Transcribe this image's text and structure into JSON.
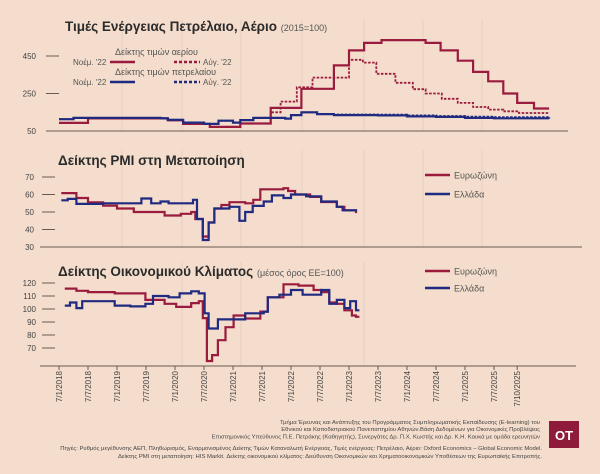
{
  "colors": {
    "background": "#f4ddcc",
    "eurozone": "#9b1b3e",
    "greece": "#1f2a80",
    "gas": "#9b1b3e",
    "oil": "#1f2a80",
    "logo": "#8e1b3a"
  },
  "chart_data": [
    {
      "type": "line",
      "title": "Τιμές Ενέργειας Πετρέλαιο, Αέριο",
      "subtitle": "(2015=100)",
      "yticks": [
        450,
        250,
        50
      ],
      "ylim": [
        50,
        560
      ],
      "legend": {
        "gas_title": "Δείκτης τιμών αερίου",
        "oil_title": "Δείκτης τιμών πετρελαίου",
        "solid_label": "Νοέμ. '22",
        "dotted_label": "Αύγ. '22"
      },
      "series": [
        {
          "name": "gas_nov22",
          "style": "solid",
          "color": "#9b1b3e",
          "points": [
            [
              2018.0,
              93
            ],
            [
              2018.5,
              117
            ],
            [
              2019.875,
              107
            ],
            [
              2020.14,
              88
            ],
            [
              2020.6,
              72
            ],
            [
              2021.125,
              90
            ],
            [
              2021.65,
              173
            ],
            [
              2022.18,
              275
            ],
            [
              2022.74,
              400
            ],
            [
              2023.0,
              480
            ],
            [
              2023.26,
              520
            ],
            [
              2023.56,
              535
            ],
            [
              2024.32,
              520
            ],
            [
              2024.58,
              480
            ],
            [
              2024.875,
              425
            ],
            [
              2025.14,
              365
            ],
            [
              2025.4,
              315
            ],
            [
              2025.66,
              250
            ],
            [
              2025.9,
              200
            ],
            [
              2026.19,
              170
            ],
            [
              2026.45,
              170
            ]
          ]
        },
        {
          "name": "gas_aug22",
          "style": "dotted",
          "color": "#9b1b3e",
          "points": [
            [
              2018.0,
              93
            ],
            [
              2018.5,
              117
            ],
            [
              2019.875,
              107
            ],
            [
              2020.14,
              88
            ],
            [
              2020.6,
              72
            ],
            [
              2021.125,
              90
            ],
            [
              2021.65,
              150
            ],
            [
              2021.82,
              207
            ],
            [
              2022.1,
              283
            ],
            [
              2022.37,
              335
            ],
            [
              2022.74,
              335
            ],
            [
              2023.0,
              430
            ],
            [
              2023.24,
              415
            ],
            [
              2023.47,
              355
            ],
            [
              2023.8,
              307
            ],
            [
              2024.1,
              273
            ],
            [
              2024.32,
              250
            ],
            [
              2024.6,
              222
            ],
            [
              2024.875,
              200
            ],
            [
              2025.14,
              178
            ],
            [
              2025.4,
              164
            ],
            [
              2025.66,
              155
            ],
            [
              2025.93,
              146
            ],
            [
              2026.45,
              146
            ]
          ]
        },
        {
          "name": "oil_nov22",
          "style": "solid",
          "color": "#1f2a80",
          "points": [
            [
              2018.0,
              113
            ],
            [
              2018.25,
              120
            ],
            [
              2019.75,
              118
            ],
            [
              2019.875,
              110
            ],
            [
              2020.14,
              95
            ],
            [
              2020.5,
              88
            ],
            [
              2020.75,
              105
            ],
            [
              2021.0,
              95
            ],
            [
              2021.125,
              108
            ],
            [
              2021.35,
              120
            ],
            [
              2021.9,
              116
            ],
            [
              2022.0,
              135
            ],
            [
              2022.18,
              150
            ],
            [
              2022.45,
              140
            ],
            [
              2022.74,
              135
            ],
            [
              2023.5,
              133
            ],
            [
              2024.0,
              128
            ],
            [
              2024.5,
              125
            ],
            [
              2025.0,
              120
            ],
            [
              2025.5,
              118
            ],
            [
              2026.45,
              116
            ]
          ]
        },
        {
          "name": "oil_aug22",
          "style": "dotted",
          "color": "#1f2a80",
          "points": [
            [
              2018.0,
              113
            ],
            [
              2018.25,
              120
            ],
            [
              2019.75,
              118
            ],
            [
              2019.875,
              110
            ],
            [
              2020.14,
              95
            ],
            [
              2020.5,
              88
            ],
            [
              2020.75,
              105
            ],
            [
              2021.0,
              95
            ],
            [
              2021.125,
              108
            ],
            [
              2021.35,
              120
            ],
            [
              2021.9,
              116
            ],
            [
              2022.0,
              135
            ],
            [
              2022.18,
              150
            ],
            [
              2022.45,
              140
            ],
            [
              2022.74,
              138
            ],
            [
              2023.5,
              137
            ],
            [
              2024.0,
              133
            ],
            [
              2024.5,
              130
            ],
            [
              2025.0,
              127
            ],
            [
              2025.5,
              124
            ],
            [
              2026.45,
              122
            ]
          ]
        }
      ]
    },
    {
      "type": "line",
      "title": "Δείκτης PMI στη Μεταποίηση",
      "yticks": [
        70,
        60,
        50,
        40,
        30
      ],
      "ylim": [
        30,
        72
      ],
      "legend": [
        "Ευρωζώνη",
        "Ελλάδα"
      ],
      "series": [
        {
          "name": "Ευρωζώνη",
          "color": "#9b1b3e",
          "points": [
            [
              2018.04,
              60.8
            ],
            [
              2018.3,
              58
            ],
            [
              2018.5,
              55.5
            ],
            [
              2018.76,
              53.6
            ],
            [
              2019.0,
              52
            ],
            [
              2019.29,
              50
            ],
            [
              2019.82,
              48
            ],
            [
              2020.1,
              49
            ],
            [
              2020.28,
              50
            ],
            [
              2020.35,
              46
            ],
            [
              2020.48,
              36
            ],
            [
              2020.58,
              44
            ],
            [
              2020.68,
              52
            ],
            [
              2020.8,
              54
            ],
            [
              2020.94,
              55.6
            ],
            [
              2021.21,
              55
            ],
            [
              2021.35,
              57
            ],
            [
              2021.47,
              63
            ],
            [
              2021.87,
              63.6
            ],
            [
              2021.95,
              62
            ],
            [
              2022.07,
              60
            ],
            [
              2022.33,
              58.6
            ],
            [
              2022.52,
              55.7
            ],
            [
              2022.79,
              53
            ],
            [
              2022.92,
              51
            ],
            [
              2023.12,
              50
            ],
            [
              2023.14,
              50
            ]
          ]
        },
        {
          "name": "Ελλάδα",
          "color": "#1f2a80",
          "points": [
            [
              2018.04,
              56.7
            ],
            [
              2018.15,
              57.5
            ],
            [
              2018.3,
              54.6
            ],
            [
              2018.76,
              55
            ],
            [
              2018.96,
              55
            ],
            [
              2019.29,
              55
            ],
            [
              2019.42,
              57.7
            ],
            [
              2019.59,
              55
            ],
            [
              2019.75,
              56
            ],
            [
              2019.89,
              55
            ],
            [
              2020.31,
              57
            ],
            [
              2020.38,
              46
            ],
            [
              2020.48,
              34
            ],
            [
              2020.58,
              44
            ],
            [
              2020.68,
              52
            ],
            [
              2020.94,
              53
            ],
            [
              2021.11,
              45
            ],
            [
              2021.21,
              50
            ],
            [
              2021.34,
              53.5
            ],
            [
              2021.53,
              56
            ],
            [
              2021.67,
              59.5
            ],
            [
              2021.87,
              58
            ],
            [
              2022.0,
              60
            ],
            [
              2022.26,
              59
            ],
            [
              2022.52,
              56
            ],
            [
              2022.79,
              53
            ],
            [
              2022.89,
              51
            ],
            [
              2023.12,
              51
            ],
            [
              2023.14,
              51
            ]
          ]
        }
      ]
    },
    {
      "type": "line",
      "title": "Δείκτης Οικονομικού Κλίματος",
      "subtitle": "(μέσος όρος ΕΕ=100)",
      "yticks": [
        120,
        110,
        100,
        90,
        80,
        70
      ],
      "ylim": [
        56,
        122
      ],
      "legend": [
        "Ευρωζώνη",
        "Ελλάδα"
      ],
      "x_ticks": [
        {
          "t": 2018.0,
          "label": "7/1/2018"
        },
        {
          "t": 2018.5,
          "label": "7/7/2018"
        },
        {
          "t": 2019.0,
          "label": "7/1/2019"
        },
        {
          "t": 2019.5,
          "label": "7/7/2019"
        },
        {
          "t": 2020.0,
          "label": "7/1/2020"
        },
        {
          "t": 2020.5,
          "label": "7/7/2020"
        },
        {
          "t": 2021.0,
          "label": "7/1/2021"
        },
        {
          "t": 2021.5,
          "label": "7/7/2021"
        },
        {
          "t": 2022.0,
          "label": "7/1/2022"
        },
        {
          "t": 2022.5,
          "label": "7/7/2022"
        },
        {
          "t": 2023.0,
          "label": "7/1/2023"
        },
        {
          "t": 2023.5,
          "label": "7/7/2023"
        },
        {
          "t": 2024.0,
          "label": "7/1/2024"
        },
        {
          "t": 2024.5,
          "label": "7/7/2024"
        },
        {
          "t": 2025.0,
          "label": "7/1/2025"
        },
        {
          "t": 2025.5,
          "label": "7/7/2025"
        },
        {
          "t": 2025.9,
          "label": "7/10/2025"
        }
      ],
      "series": [
        {
          "name": "Ευρωζώνη",
          "color": "#9b1b3e",
          "points": [
            [
              2018.1,
              115.7
            ],
            [
              2018.3,
              114
            ],
            [
              2018.5,
              113
            ],
            [
              2018.96,
              112
            ],
            [
              2019.49,
              107
            ],
            [
              2019.82,
              104
            ],
            [
              2020.02,
              101.6
            ],
            [
              2020.28,
              104.5
            ],
            [
              2020.41,
              106
            ],
            [
              2020.48,
              93
            ],
            [
              2020.55,
              60
            ],
            [
              2020.64,
              64.5
            ],
            [
              2020.74,
              76
            ],
            [
              2020.87,
              86
            ],
            [
              2021.01,
              95
            ],
            [
              2021.21,
              92.7
            ],
            [
              2021.47,
              98
            ],
            [
              2021.6,
              109
            ],
            [
              2021.87,
              119
            ],
            [
              2022.13,
              118
            ],
            [
              2022.39,
              114.6
            ],
            [
              2022.52,
              113
            ],
            [
              2022.66,
              105
            ],
            [
              2022.79,
              104
            ],
            [
              2022.92,
              99
            ],
            [
              2023.05,
              95
            ],
            [
              2023.12,
              94
            ],
            [
              2023.18,
              94
            ]
          ]
        },
        {
          "name": "Ελλάδα",
          "color": "#1f2a80",
          "points": [
            [
              2018.1,
              102.6
            ],
            [
              2018.19,
              105
            ],
            [
              2018.3,
              100.7
            ],
            [
              2018.4,
              106
            ],
            [
              2018.96,
              102.6
            ],
            [
              2019.23,
              102
            ],
            [
              2019.49,
              104
            ],
            [
              2019.62,
              110
            ],
            [
              2019.89,
              109
            ],
            [
              2020.08,
              112
            ],
            [
              2020.28,
              113.6
            ],
            [
              2020.41,
              112
            ],
            [
              2020.51,
              96.7
            ],
            [
              2020.58,
              85
            ],
            [
              2020.74,
              92
            ],
            [
              2020.94,
              92
            ],
            [
              2021.21,
              96.7
            ],
            [
              2021.53,
              98
            ],
            [
              2021.6,
              109
            ],
            [
              2021.8,
              111
            ],
            [
              2022.0,
              114.6
            ],
            [
              2022.2,
              111
            ],
            [
              2022.52,
              114.6
            ],
            [
              2022.66,
              104
            ],
            [
              2022.79,
              107
            ],
            [
              2022.92,
              100.7
            ],
            [
              2023.02,
              106
            ],
            [
              2023.12,
              99
            ],
            [
              2023.18,
              99
            ]
          ]
        }
      ]
    }
  ],
  "footer": {
    "credits": [
      "Τμήμα Έρευνας και Ανάπτυξης του Προγράμματος Συμπληρωματικής Εκπαίδευσης (E-learning) του",
      "Εθνικού και Καποδιστριακού Πανεπιστημίου Αθηνών.Βάση Δεδομένων για Οικονομικές Προβλέψεις",
      "Επιστημονικός Υπεύθυνος Π.Ε. Πετράκης (Καθηγητής), Συνεργάτες Δρ. Π.Χ. Κωστής και Δρ. Κ.Η. Καυκά με ομάδα ερευνητών"
    ],
    "sources": [
      "Πηγές: Ρυθμός μεγέθυνσης ΑΕΠ, Πληθωρισμός, Εναρμονισμένος Δείκτης Τιμών Καταναλωτή Ενέργειας, Τιμές ενέργειας: Πετρέλαιο, Αέριο: Oxford Economics – Global Economic Model.",
      "Δείκτης PMI στη μεταποίηση: HIS Markit. Δείκτης οικονομικού κλίματος: Διεύθυνση Οικονομικών και Χρηματοοικονομικών Υποθέσεων της Ευρωπαϊκής Επιτροπής."
    ],
    "logo": "OT"
  }
}
